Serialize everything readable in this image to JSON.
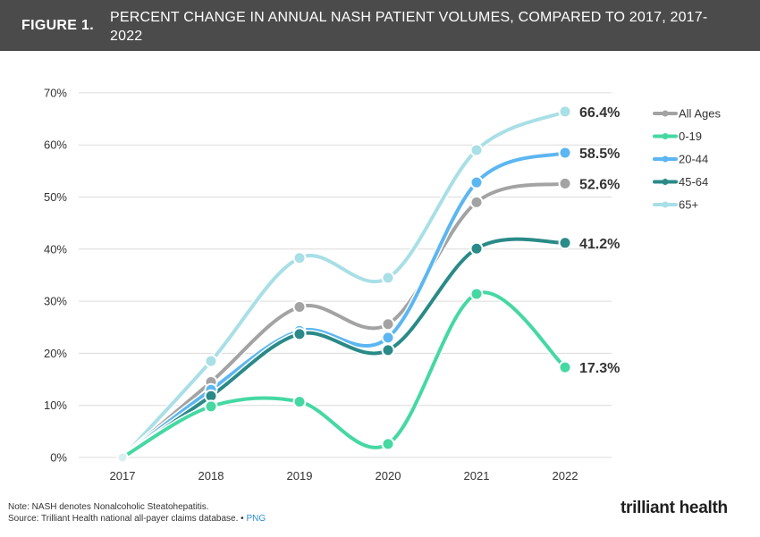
{
  "header": {
    "figure_label": "FIGURE 1.",
    "title": "PERCENT CHANGE IN ANNUAL NASH PATIENT VOLUMES, COMPARED TO 2017, 2017-2022"
  },
  "chart_data": {
    "type": "line",
    "categories": [
      "2017",
      "2018",
      "2019",
      "2020",
      "2021",
      "2022"
    ],
    "yticks": [
      "0%",
      "10%",
      "20%",
      "30%",
      "40%",
      "50%",
      "60%",
      "70%"
    ],
    "ylim": [
      0,
      70
    ],
    "series": [
      {
        "name": "65+",
        "color": "#a9dfe6",
        "values": [
          0,
          18.5,
          38.3,
          34.5,
          59.0,
          66.4
        ],
        "end_label": "66.4%"
      },
      {
        "name": "All Ages",
        "color": "#a3a3a3",
        "values": [
          0,
          14.5,
          28.9,
          25.6,
          49.0,
          52.6
        ],
        "end_label": "52.6%"
      },
      {
        "name": "20-44",
        "color": "#5cb6f1",
        "values": [
          0,
          13.0,
          24.3,
          23.0,
          52.8,
          58.5
        ],
        "end_label": "58.5%"
      },
      {
        "name": "45-64",
        "color": "#2a8a88",
        "values": [
          0,
          11.8,
          23.7,
          20.6,
          40.1,
          41.2
        ],
        "end_label": "41.2%"
      },
      {
        "name": "0-19",
        "color": "#45d8a3",
        "values": [
          0,
          9.8,
          10.7,
          2.6,
          31.4,
          17.3
        ],
        "end_label": "17.3%"
      }
    ],
    "legend": [
      "All Ages",
      "0-19",
      "20-44",
      "45-64",
      "65+"
    ],
    "legend_position": "right"
  },
  "footer": {
    "note": "Note: NASH denotes Nonalcoholic Steatohepatitis.",
    "source": "Source: Trilliant Health national all-payer claims database.",
    "separator": "•",
    "link": "PNG"
  },
  "logo": {
    "word1": "trilliant",
    "word2": "health"
  }
}
